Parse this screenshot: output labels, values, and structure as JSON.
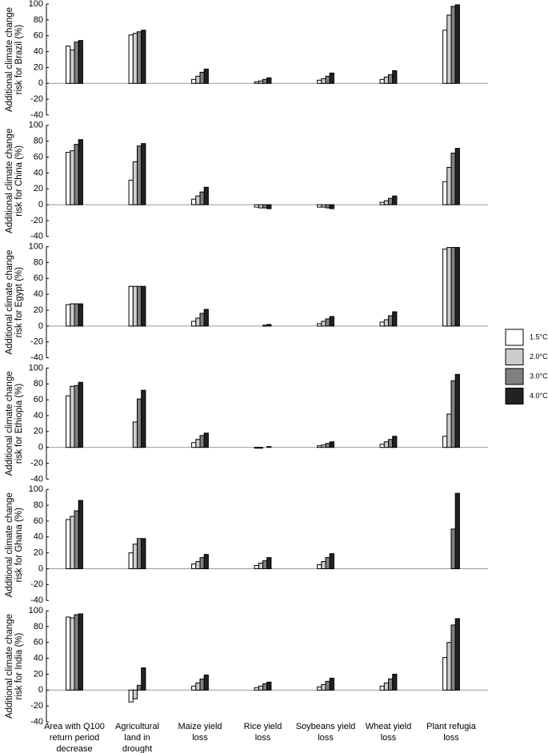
{
  "chart_data": {
    "type": "bar",
    "categories": [
      [
        "Area with Q100",
        "return period",
        "decrease"
      ],
      [
        "Agricultural",
        "land in",
        "drought"
      ],
      [
        "Maize yield",
        "loss"
      ],
      [
        "Rice yield",
        "loss"
      ],
      [
        "Soybeans yield",
        "loss"
      ],
      [
        "Wheat yield",
        "loss"
      ],
      [
        "Plant refugia",
        "loss"
      ]
    ],
    "legend": [
      {
        "name": "1.5°C",
        "color": "#ffffff"
      },
      {
        "name": "2.0°C",
        "color": "#cccccc"
      },
      {
        "name": "3.0°C",
        "color": "#808080"
      },
      {
        "name": "4.0°C",
        "color": "#222222"
      }
    ],
    "ylim": [
      -40,
      100
    ],
    "yticks": [
      -40,
      -20,
      0,
      20,
      40,
      60,
      80,
      100
    ],
    "panels": [
      {
        "ylabel": [
          "Additional climate change",
          "risk for Brazil (%)"
        ],
        "values": [
          [
            47,
            61,
            5,
            2,
            4,
            5,
            67
          ],
          [
            42,
            63,
            9,
            3,
            6,
            8,
            86
          ],
          [
            52,
            65,
            14,
            5,
            9,
            11,
            97
          ],
          [
            54,
            67,
            18,
            7,
            13,
            16,
            99
          ]
        ]
      },
      {
        "ylabel": [
          "Additional climate change",
          "risk for China (%)"
        ],
        "values": [
          [
            66,
            31,
            7,
            -3,
            -3,
            3,
            29
          ],
          [
            68,
            54,
            11,
            -4,
            -3,
            5,
            47
          ],
          [
            76,
            74,
            16,
            -4,
            -4,
            8,
            65
          ],
          [
            82,
            77,
            22,
            -5,
            -5,
            11,
            71
          ]
        ]
      },
      {
        "ylabel": [
          "Additional climate change",
          "risk for Egypt (%)"
        ],
        "values": [
          [
            27,
            50,
            6,
            0,
            3,
            5,
            97
          ],
          [
            28,
            50,
            10,
            0,
            6,
            8,
            99
          ],
          [
            28,
            50,
            16,
            1,
            9,
            13,
            99
          ],
          [
            28,
            50,
            21,
            2,
            12,
            18,
            99
          ]
        ]
      },
      {
        "ylabel": [
          "Additional climate change",
          "risk for Ethiopia (%)"
        ],
        "values": [
          [
            65,
            0,
            6,
            -1,
            2,
            4,
            14
          ],
          [
            77,
            32,
            10,
            -1,
            3,
            7,
            42
          ],
          [
            78,
            61,
            15,
            0,
            5,
            10,
            84
          ],
          [
            82,
            72,
            18,
            1,
            7,
            14,
            92
          ]
        ]
      },
      {
        "ylabel": [
          "Additional climate change",
          "risk for Ghana (%)"
        ],
        "values": [
          [
            62,
            20,
            6,
            4,
            5,
            null,
            0
          ],
          [
            66,
            31,
            9,
            7,
            9,
            null,
            0
          ],
          [
            73,
            38,
            14,
            10,
            14,
            null,
            50
          ],
          [
            86,
            38,
            18,
            14,
            19,
            null,
            95
          ]
        ]
      },
      {
        "ylabel": [
          "Additional climate change",
          "risk for India (%)"
        ],
        "values": [
          [
            92,
            -15,
            5,
            3,
            4,
            5,
            41
          ],
          [
            91,
            -11,
            9,
            5,
            7,
            9,
            60
          ],
          [
            95,
            6,
            14,
            8,
            11,
            14,
            82
          ],
          [
            96,
            28,
            19,
            10,
            15,
            20,
            90
          ]
        ]
      }
    ]
  }
}
